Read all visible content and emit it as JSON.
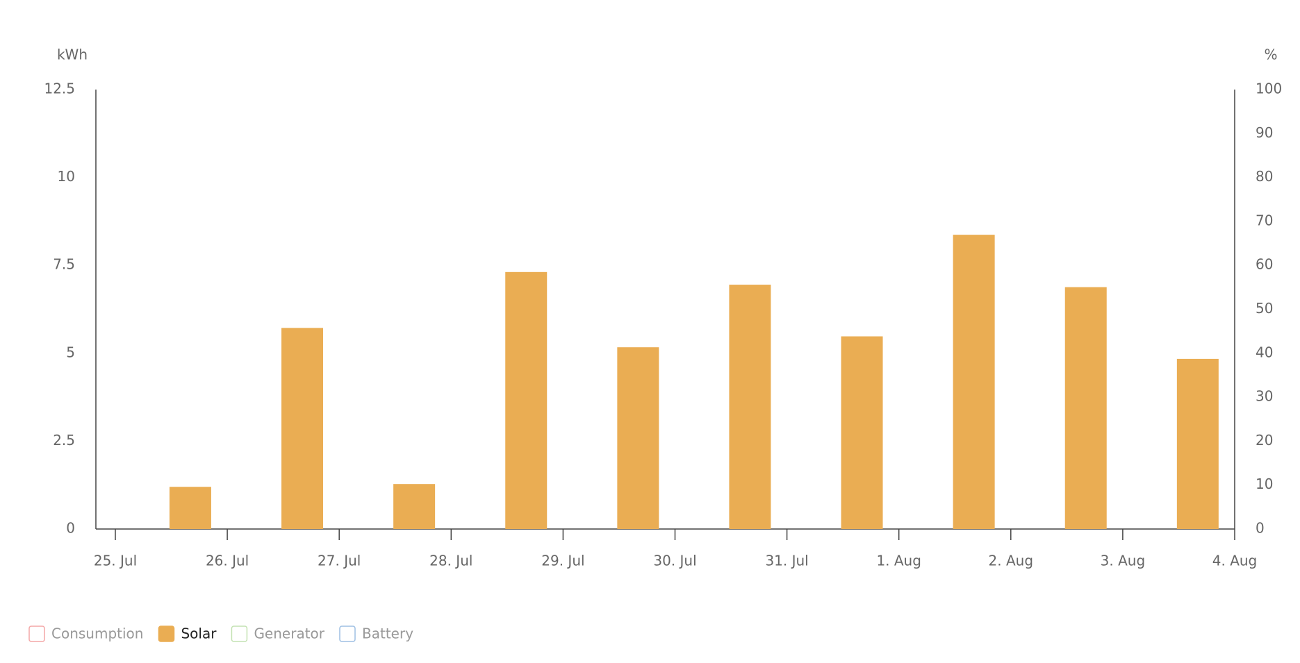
{
  "chart_data": {
    "type": "bar",
    "y_unit": "kWh",
    "y2_unit": "%",
    "xticks": [
      "25. Jul",
      "26. Jul",
      "27. Jul",
      "28. Jul",
      "29. Jul",
      "30. Jul",
      "31. Jul",
      "1. Aug",
      "2. Aug",
      "3. Aug",
      "4. Aug"
    ],
    "ylim": [
      0,
      12.5
    ],
    "yticks": [
      0,
      2.5,
      5,
      7.5,
      10,
      12.5
    ],
    "y2lim": [
      0,
      100
    ],
    "y2ticks": [
      0,
      10,
      20,
      30,
      40,
      50,
      60,
      70,
      80,
      90,
      100
    ],
    "series": [
      {
        "name": "Consumption",
        "color": "#f4a6a6",
        "visible": false
      },
      {
        "name": "Solar",
        "color": "#eaad53",
        "visible": true,
        "values": [
          1.2,
          5.72,
          1.28,
          7.31,
          5.17,
          6.95,
          5.48,
          8.37,
          6.88,
          4.84
        ]
      },
      {
        "name": "Generator",
        "color": "#c3e2b2",
        "visible": false
      },
      {
        "name": "Battery",
        "color": "#9dbfe3",
        "visible": false
      }
    ]
  }
}
